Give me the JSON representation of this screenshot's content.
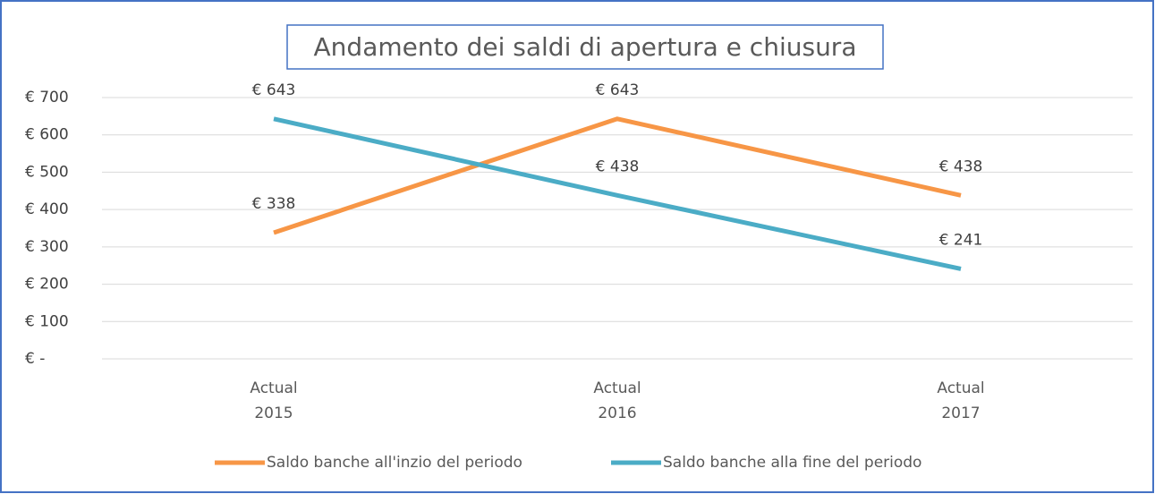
{
  "chart_data": {
    "type": "line",
    "title": "Andamento dei saldi di apertura e chiusura",
    "categories": [
      "Actual 2015",
      "Actual 2016",
      "Actual 2017"
    ],
    "series": [
      {
        "name": "Saldo banche all'inzio del periodo",
        "color": "#f79646",
        "values": [
          338,
          643,
          438
        ],
        "value_labels": [
          "€ 338",
          "€ 643",
          "€ 438"
        ]
      },
      {
        "name": "Saldo banche alla fine del periodo",
        "color": "#4bacc6",
        "values": [
          643,
          438,
          241
        ],
        "value_labels": [
          "€ 643",
          "€ 438",
          "€ 241"
        ]
      }
    ],
    "ylim": [
      0,
      700
    ],
    "yticks": [
      {
        "value": 0,
        "label": "€ -"
      },
      {
        "value": 100,
        "label": "€ 100"
      },
      {
        "value": 200,
        "label": "€ 200"
      },
      {
        "value": 300,
        "label": "€ 300"
      },
      {
        "value": 400,
        "label": "€ 400"
      },
      {
        "value": 500,
        "label": "€ 500"
      },
      {
        "value": 600,
        "label": "€ 600"
      },
      {
        "value": 700,
        "label": "€ 700"
      }
    ],
    "grid": true,
    "legend": "bottom"
  }
}
